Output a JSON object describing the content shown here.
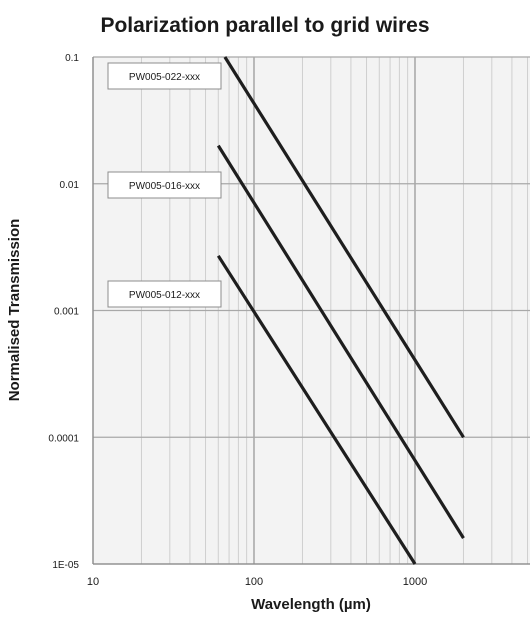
{
  "chart_data": {
    "type": "line",
    "title": "Polarization parallel to grid wires",
    "xlabel": "Wavelength (µm)",
    "ylabel": "Normalised Transmission",
    "x_scale": "log",
    "y_scale": "log",
    "xlim": [
      10,
      5000
    ],
    "ylim": [
      1e-05,
      0.1
    ],
    "x_ticks": [
      10,
      100,
      1000
    ],
    "x_tick_labels": [
      "10",
      "100",
      "1000"
    ],
    "y_ticks": [
      0.1,
      0.01,
      0.001,
      0.0001,
      1e-05
    ],
    "y_tick_labels": [
      "0.1",
      "0.01",
      "0.001",
      "0.0001",
      "1E-05"
    ],
    "grid": true,
    "series": [
      {
        "name": "PW005-022-xxx",
        "x": [
          66,
          2000
        ],
        "y": [
          0.1,
          0.0001
        ]
      },
      {
        "name": "PW005-016-xxx",
        "x": [
          60,
          2000
        ],
        "y": [
          0.02,
          1.6e-05
        ]
      },
      {
        "name": "PW005-012-xxx",
        "x": [
          60,
          1000
        ],
        "y": [
          0.0027,
          1e-05
        ]
      }
    ],
    "colors": {
      "line": "#1e1e1e",
      "grid": "#b8b8b8",
      "plot_bg": "#f3f3f3"
    }
  }
}
